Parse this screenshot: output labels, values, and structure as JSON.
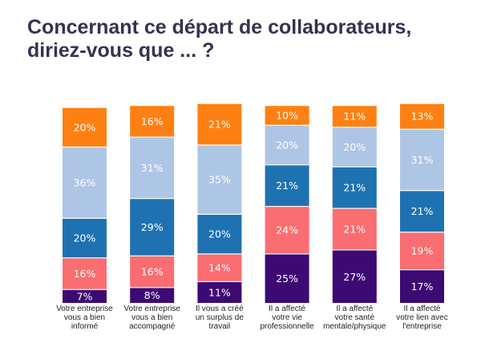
{
  "title": {
    "line1": "Concernant ce départ de collaborateurs,",
    "line2": "diriez-vous que ... ?"
  },
  "chart_data": {
    "type": "bar",
    "stacked": true,
    "categories": [
      [
        "Votre entreprise",
        "vous a bien",
        "informé"
      ],
      [
        "Votre entreprise",
        "vous a bien",
        "accompagné"
      ],
      [
        "Il vous a créé",
        "un surplus de",
        "travail"
      ],
      [
        "Il a affecté",
        "votre vie",
        "professionnelle"
      ],
      [
        "Il a affecté",
        "votre santé",
        "mentale/physique"
      ],
      [
        "Il a affecté",
        "votre lien avec",
        "l'entreprise"
      ]
    ],
    "series": [
      {
        "color": "#3d0a73",
        "label_color": "#ffffff",
        "values": [
          7,
          8,
          11,
          25,
          27,
          17
        ]
      },
      {
        "color": "#fa6d70",
        "label_color": "#ffffff",
        "values": [
          16,
          16,
          14,
          24,
          21,
          19
        ]
      },
      {
        "color": "#1f72b2",
        "label_color": "#ffffff",
        "values": [
          20,
          29,
          20,
          21,
          21,
          21
        ]
      },
      {
        "color": "#aec6e6",
        "label_color": "#ffffff",
        "values": [
          36,
          31,
          35,
          20,
          20,
          31
        ]
      },
      {
        "color": "#ff8012",
        "label_color": "#ffffff",
        "values": [
          20,
          16,
          21,
          10,
          11,
          13
        ]
      }
    ],
    "labels": [
      [
        "7%",
        "8%",
        "11%",
        "25%",
        "27%",
        "17%"
      ],
      [
        "16%",
        "16%",
        "14%",
        "24%",
        "21%",
        "19%"
      ],
      [
        "20%",
        "29%",
        "20%",
        "21%",
        "21%",
        "21%"
      ],
      [
        "36%",
        "31%",
        "35%",
        "20%",
        "20%",
        "31%"
      ],
      [
        "20%",
        "16%",
        "21%",
        "10%",
        "11%",
        "13%"
      ]
    ],
    "ylim": [
      0,
      100
    ],
    "grid": false,
    "legend": "none"
  }
}
